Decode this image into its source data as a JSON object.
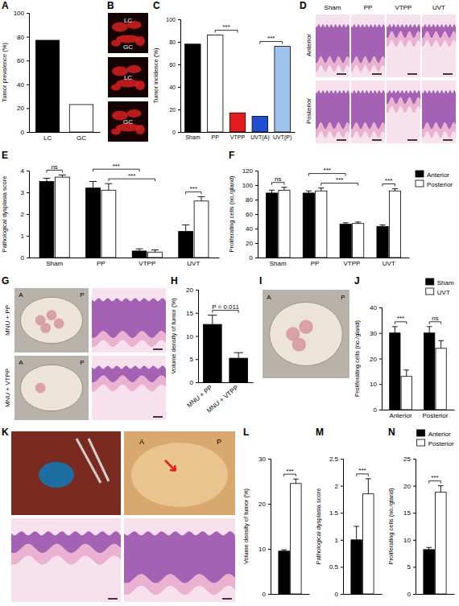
{
  "chart_data": [
    {
      "panel_label": "A",
      "type": "bar",
      "y_label": "Tumor prevalence (%)",
      "categories": [
        "LC",
        "GC"
      ],
      "values": [
        77,
        23
      ],
      "colors": [
        "#000000",
        "#ffffff"
      ],
      "ylim": [
        0,
        100
      ],
      "yticks": [
        0,
        20,
        40,
        60,
        80,
        100
      ]
    },
    {
      "panel_label": "C",
      "type": "bar",
      "y_label": "Tumor incidence (%)",
      "categories": [
        "Sham",
        "PP",
        "VTPP",
        "UVT(A)",
        "UVT(P)"
      ],
      "values": [
        78,
        86,
        17,
        14,
        76
      ],
      "colors": [
        "#000000",
        "#ffffff",
        "#e41a1c",
        "#1f4fd0",
        "#9ec4ee"
      ],
      "ylim": [
        0,
        100
      ],
      "yticks": [
        0,
        20,
        40,
        60,
        80,
        100
      ],
      "annotations": [
        {
          "text": "***",
          "from": [
            1,
            0
          ],
          "to": [
            2,
            0
          ]
        },
        {
          "text": "***",
          "from": [
            3,
            0
          ],
          "to": [
            4,
            0
          ]
        }
      ]
    },
    {
      "panel_label": "E",
      "type": "bar",
      "y_label": "Pathological dysplasia score",
      "categories": [
        "Sham",
        "PP",
        "VTPP",
        "UVT"
      ],
      "series": [
        {
          "color": "#000000",
          "values": [
            3.5,
            3.2,
            0.3,
            1.2
          ],
          "errors": [
            0.15,
            0.3,
            0.1,
            0.3
          ]
        },
        {
          "color": "#ffffff",
          "values": [
            3.7,
            3.1,
            0.25,
            2.6
          ],
          "errors": [
            0.1,
            0.3,
            0.1,
            0.2
          ]
        }
      ],
      "ylim": [
        0,
        4
      ],
      "yticks": [
        0,
        1,
        2,
        3,
        4
      ],
      "annotations": [
        {
          "text": "ns",
          "from": [
            0,
            0
          ],
          "to": [
            0,
            1
          ]
        },
        {
          "text": "***",
          "from": [
            1,
            1
          ],
          "to": [
            2,
            1
          ]
        },
        {
          "text": "***",
          "from": [
            1,
            0
          ],
          "to": [
            2,
            0
          ]
        },
        {
          "text": "***",
          "from": [
            3,
            0
          ],
          "to": [
            3,
            1
          ]
        }
      ]
    },
    {
      "panel_label": "F",
      "type": "bar",
      "y_label": "Proliferating cells (no./gland)",
      "categories": [
        "Sham",
        "PP",
        "VTPP",
        "UVT"
      ],
      "series": [
        {
          "name": "Anterior",
          "color": "#000000",
          "values": [
            89,
            89,
            46,
            43
          ],
          "errors": [
            4,
            3,
            2,
            2
          ]
        },
        {
          "name": "Posterior",
          "color": "#ffffff",
          "values": [
            93,
            92,
            47,
            92
          ],
          "errors": [
            4,
            4,
            2,
            3
          ]
        }
      ],
      "ylim": [
        0,
        120
      ],
      "yticks": [
        0,
        20,
        40,
        60,
        80,
        100,
        120
      ],
      "legend": "right",
      "annotations": [
        {
          "text": "ns",
          "from": [
            0,
            0
          ],
          "to": [
            0,
            1
          ]
        },
        {
          "text": "***",
          "from": [
            1,
            1
          ],
          "to": [
            2,
            1
          ]
        },
        {
          "text": "***",
          "from": [
            1,
            0
          ],
          "to": [
            2,
            0
          ]
        },
        {
          "text": "***",
          "from": [
            3,
            0
          ],
          "to": [
            3,
            1
          ]
        }
      ]
    },
    {
      "panel_label": "H",
      "type": "bar",
      "y_label": "Volume density of tumor (%)",
      "categories": [
        "MNU + PP",
        "MNU + VTPP"
      ],
      "values": [
        12.5,
        5.2
      ],
      "errors": [
        2.0,
        1.2
      ],
      "color": "#000000",
      "ylim": [
        0,
        20
      ],
      "yticks": [
        0,
        5,
        10,
        15,
        20
      ],
      "annotations": [
        {
          "text": "P = 0.011",
          "from": [
            0,
            0
          ],
          "to": [
            1,
            0
          ]
        }
      ]
    },
    {
      "panel_label": "J",
      "type": "bar",
      "y_label": "Proliferating cells (no./gland)",
      "categories": [
        "Anterior",
        "Posterior"
      ],
      "series": [
        {
          "name": "Sham",
          "color": "#000000",
          "values": [
            30,
            30
          ],
          "errors": [
            2.5,
            2.5
          ]
        },
        {
          "name": "UVT",
          "color": "#ffffff",
          "values": [
            13,
            24
          ],
          "errors": [
            2.5,
            3
          ]
        }
      ],
      "ylim": [
        0,
        40
      ],
      "yticks": [
        0,
        10,
        20,
        30,
        40
      ],
      "legend": "top-right",
      "annotations": [
        {
          "text": "***",
          "from": [
            0,
            0
          ],
          "to": [
            0,
            1
          ]
        },
        {
          "text": "ns",
          "from": [
            1,
            0
          ],
          "to": [
            1,
            1
          ]
        }
      ]
    },
    {
      "panel_label": "L",
      "type": "bar",
      "y_label": "Volume density of tumor (%)",
      "categories": [
        null
      ],
      "series": [
        {
          "color": "#000000",
          "values": [
            9.5
          ],
          "errors": [
            0.3
          ]
        },
        {
          "color": "#ffffff",
          "values": [
            24.5
          ],
          "errors": [
            1.0
          ]
        }
      ],
      "ylim": [
        0,
        30
      ],
      "yticks": [
        0,
        10,
        20,
        30
      ],
      "annotations": [
        {
          "text": "***",
          "from": [
            0,
            0
          ],
          "to": [
            0,
            1
          ]
        }
      ]
    },
    {
      "panel_label": "M",
      "type": "bar",
      "y_label": "Pathological dysplasia score",
      "categories": [
        null
      ],
      "series": [
        {
          "color": "#000000",
          "values": [
            1.0
          ],
          "errors": [
            0.25
          ]
        },
        {
          "color": "#ffffff",
          "values": [
            1.85
          ],
          "errors": [
            0.28
          ]
        }
      ],
      "ylim": [
        0,
        2.5
      ],
      "yticks": [
        0,
        0.5,
        1,
        1.5,
        2,
        2.5
      ],
      "annotations": [
        {
          "text": "***",
          "from": [
            0,
            0
          ],
          "to": [
            0,
            1
          ]
        }
      ]
    },
    {
      "panel_label": "N",
      "type": "bar",
      "y_label": "Proliferating cells (no./gland)",
      "categories": [
        null
      ],
      "series": [
        {
          "name": "Anterior",
          "color": "#000000",
          "values": [
            8.2
          ],
          "errors": [
            0.4
          ]
        },
        {
          "name": "Posterior",
          "color": "#ffffff",
          "values": [
            18.8
          ],
          "errors": [
            1.2
          ]
        }
      ],
      "ylim": [
        0,
        25
      ],
      "yticks": [
        0,
        5,
        10,
        15,
        20,
        25
      ],
      "legend": "top-right",
      "annotations": [
        {
          "text": "***",
          "from": [
            0,
            0
          ],
          "to": [
            0,
            1
          ]
        }
      ]
    }
  ],
  "image_panels": [
    {
      "panel_label": "B",
      "images": [
        {
          "labels": [
            "LC",
            "GC"
          ]
        },
        {
          "labels": [
            "LC"
          ]
        },
        {
          "labels": [
            "GC"
          ]
        }
      ]
    },
    {
      "panel_label": "D",
      "columns": [
        "Sham",
        "PP",
        "VTPP",
        "UVT"
      ],
      "rows": [
        "Anterior",
        "Posterior"
      ]
    },
    {
      "panel_label": "G",
      "rows": [
        "MNU + PP",
        "MNU + VTPP"
      ],
      "photo_labels": [
        "A",
        "P"
      ]
    },
    {
      "panel_label": "I",
      "photo_labels": [
        "A",
        "P"
      ]
    },
    {
      "panel_label": "K",
      "photo_labels": [
        "A",
        "P"
      ]
    }
  ]
}
